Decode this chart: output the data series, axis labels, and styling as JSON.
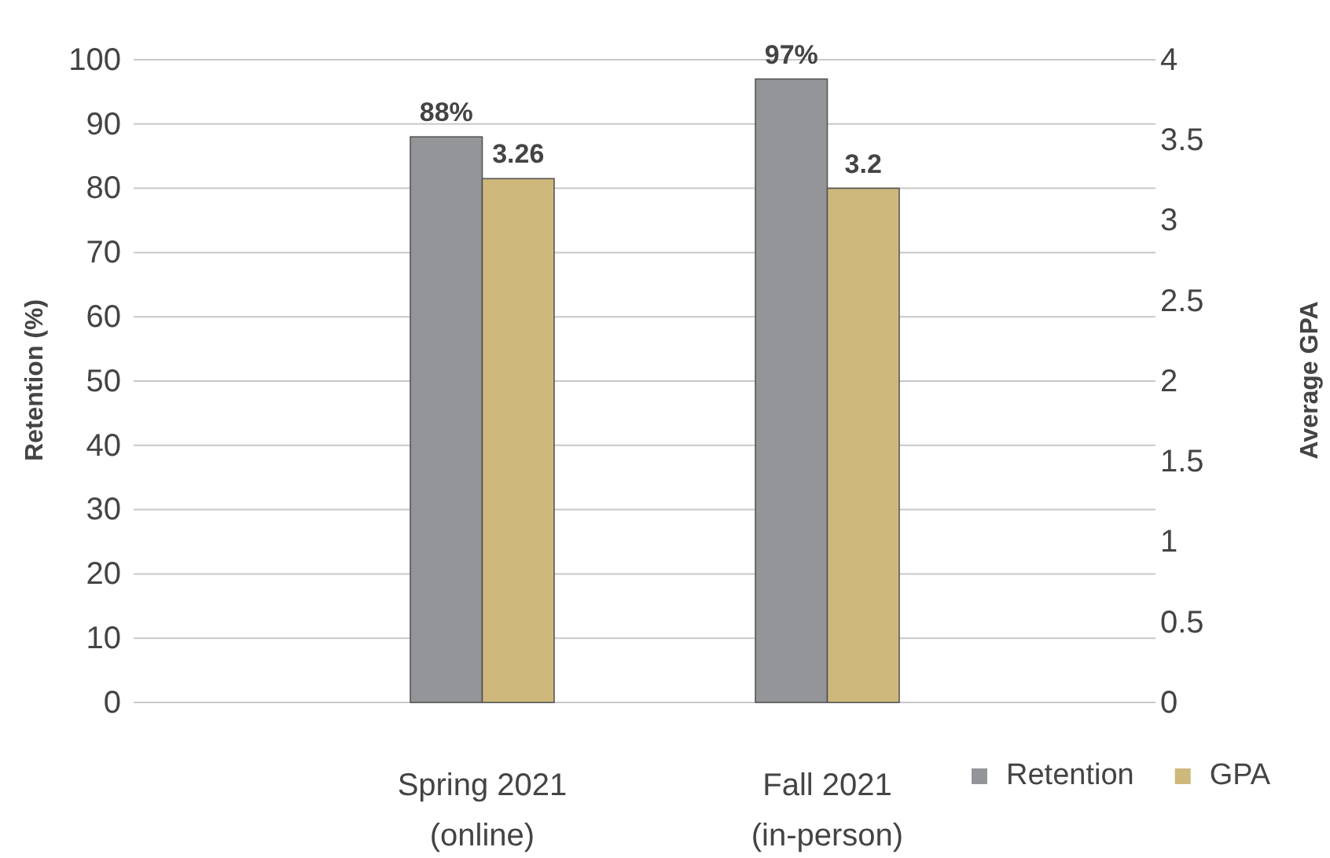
{
  "chart_data": {
    "type": "bar",
    "categories": [
      "Spring 2021 (online)",
      "Fall 2021 (in-person)"
    ],
    "ylabel": "Retention (%)",
    "y2label": "Average GPA",
    "ylim": [
      0,
      100
    ],
    "yticks": [
      0,
      10,
      20,
      30,
      40,
      50,
      60,
      70,
      80,
      90,
      100
    ],
    "y2lim": [
      0,
      4
    ],
    "y2ticks": [
      0,
      0.5,
      1,
      1.5,
      2,
      2.5,
      3,
      3.5,
      4
    ],
    "series": [
      {
        "name": "Retention",
        "color": "#939598",
        "values": [
          88,
          97
        ],
        "value_labels": [
          "88%",
          "97%"
        ]
      },
      {
        "name": "GPA",
        "color": "#cfb87c",
        "values": [
          3.26,
          3.2
        ],
        "value_labels": [
          "3.26",
          "3.2"
        ],
        "axis": "y2"
      }
    ],
    "grid": "y",
    "legend": "bottom right"
  }
}
